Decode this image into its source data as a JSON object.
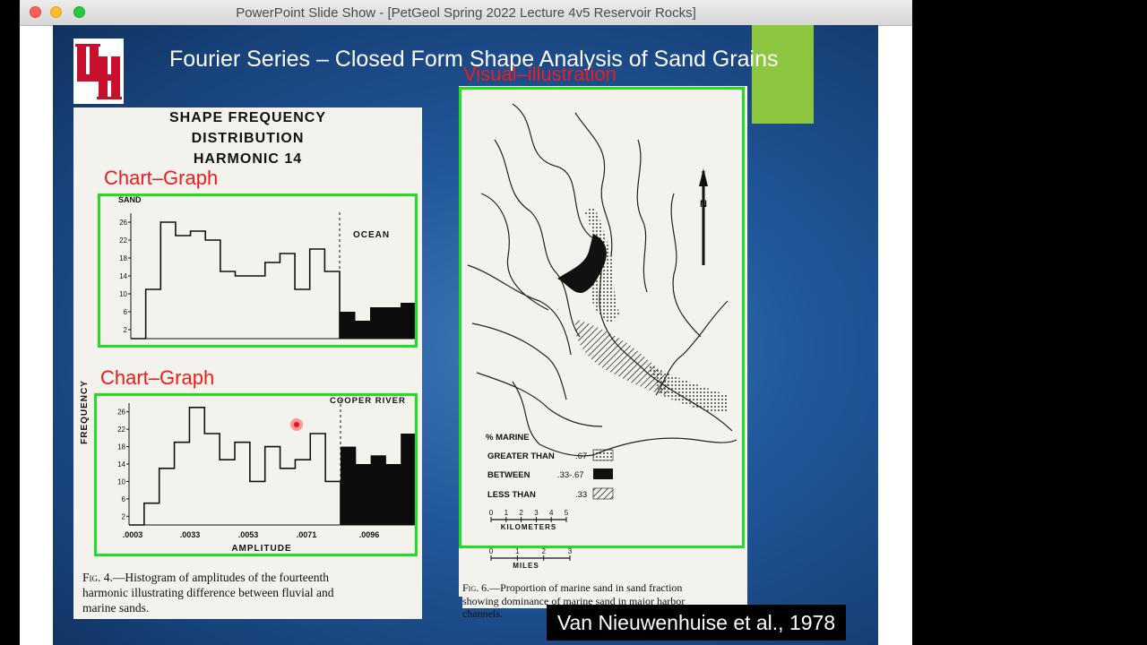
{
  "window": {
    "title": "PowerPoint Slide Show - [PetGeol Spring 2022 Lecture 4v5 Reservoir Rocks]",
    "traffic_colors": [
      "#fe5f57",
      "#febc2e",
      "#28c840"
    ]
  },
  "slide": {
    "title": "Fourier Series – Closed Form Shape Analysis of Sand Grains",
    "citation": "Van Nieuwenhuise et al., 1978",
    "logo_text": "UH",
    "accent_color": "#8dc63f"
  },
  "annotations": {
    "chart_graph_1": "Chart–Graph",
    "chart_graph_2": "Chart–Graph",
    "visual_illustration": "Visual–illustration",
    "box_color": "#22dd22",
    "label_color": "#ee1c1c"
  },
  "figure_left": {
    "title_line1": "SHAPE FREQUENCY",
    "title_line2": "DISTRIBUTION",
    "title_line3": "HARMONIC 14",
    "y_axis_label": "FREQUENCY",
    "x_axis_label": "AMPLITUDE",
    "caption_fig": "Fig. 4.",
    "caption_line1": "—Histogram of amplitudes of the fourteenth",
    "caption_line2": "harmonic illustrating difference between fluvial and",
    "caption_line3": "marine sands."
  },
  "chart_data": [
    {
      "type": "bar",
      "panel": "top",
      "labels": [
        "SAND",
        "OCEAN"
      ],
      "y_ticks": [
        "2",
        "6",
        "10",
        "14",
        "18",
        "22",
        "26"
      ],
      "ylim": [
        0,
        28
      ],
      "fluvial_values": [
        0,
        11,
        26,
        23,
        24,
        22,
        15,
        14,
        14,
        17,
        19,
        11,
        20,
        15
      ],
      "marine_values": [
        6,
        4,
        7,
        7,
        8
      ]
    },
    {
      "type": "bar",
      "panel": "bottom",
      "labels": [
        "COOPER RIVER"
      ],
      "y_ticks": [
        "2",
        "6",
        "10",
        "14",
        "18",
        "22",
        "26"
      ],
      "x_ticks": [
        ".0003",
        ".0033",
        ".0053",
        ".0071",
        ".0096"
      ],
      "ylim": [
        0,
        28
      ],
      "fluvial_values": [
        0,
        5,
        13,
        19,
        27,
        21,
        15,
        19,
        10,
        18,
        13,
        15,
        21,
        10
      ],
      "marine_values": [
        18,
        14,
        16,
        14,
        21
      ]
    }
  ],
  "figure_right": {
    "north_label": "N",
    "legend_title": "% MARINE",
    "legend_rows": [
      {
        "label": "GREATER THAN",
        "value": ".67"
      },
      {
        "label": "BETWEEN",
        "value": ".33-.67"
      },
      {
        "label": "LESS THAN",
        "value": ".33"
      }
    ],
    "km_ticks": [
      "0",
      "1",
      "2",
      "3",
      "4",
      "5"
    ],
    "km_label": "KILOMETERS",
    "mi_ticks": [
      "0",
      "1",
      "2",
      "3"
    ],
    "mi_label": "MILES",
    "caption_fig": "Fig. 6.",
    "caption_line1": "—Proportion of marine sand in sand fraction",
    "caption_line2": "showing dominance of marine sand in major harbor",
    "caption_line3": "channels."
  }
}
